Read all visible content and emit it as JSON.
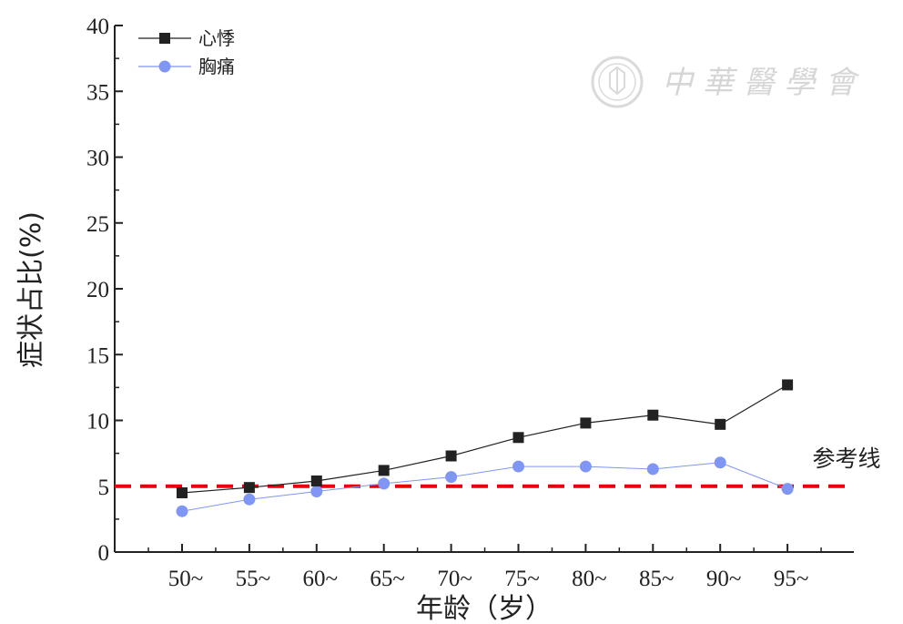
{
  "chart_data": {
    "type": "line",
    "title": "",
    "xlabel": "年龄（岁）",
    "ylabel": "症状占比(%)",
    "categories": [
      "50~",
      "55~",
      "60~",
      "65~",
      "70~",
      "75~",
      "80~",
      "85~",
      "90~",
      "95~"
    ],
    "series": [
      {
        "name": "心悸",
        "color": "#222222",
        "marker": "square",
        "values": [
          4.5,
          4.9,
          5.4,
          6.2,
          7.3,
          8.7,
          9.8,
          10.4,
          9.7,
          12.7
        ]
      },
      {
        "name": "胸痛",
        "color": "#7f96f5",
        "marker": "circle",
        "values": [
          3.1,
          4.0,
          4.6,
          5.2,
          5.7,
          6.5,
          6.5,
          6.3,
          6.8,
          4.8
        ]
      }
    ],
    "reference_line": {
      "label": "参考线",
      "value": 5,
      "color": "#e8000b",
      "style": "dashed"
    },
    "ylim": [
      0,
      40
    ],
    "yticks": [
      "0",
      "5",
      "10",
      "15",
      "20",
      "25",
      "30",
      "35",
      "40"
    ],
    "grid": false,
    "legend_position": "top-left"
  },
  "watermark": {
    "text": "中 華 醫 學 會",
    "icon": "cma-seal-logo"
  }
}
